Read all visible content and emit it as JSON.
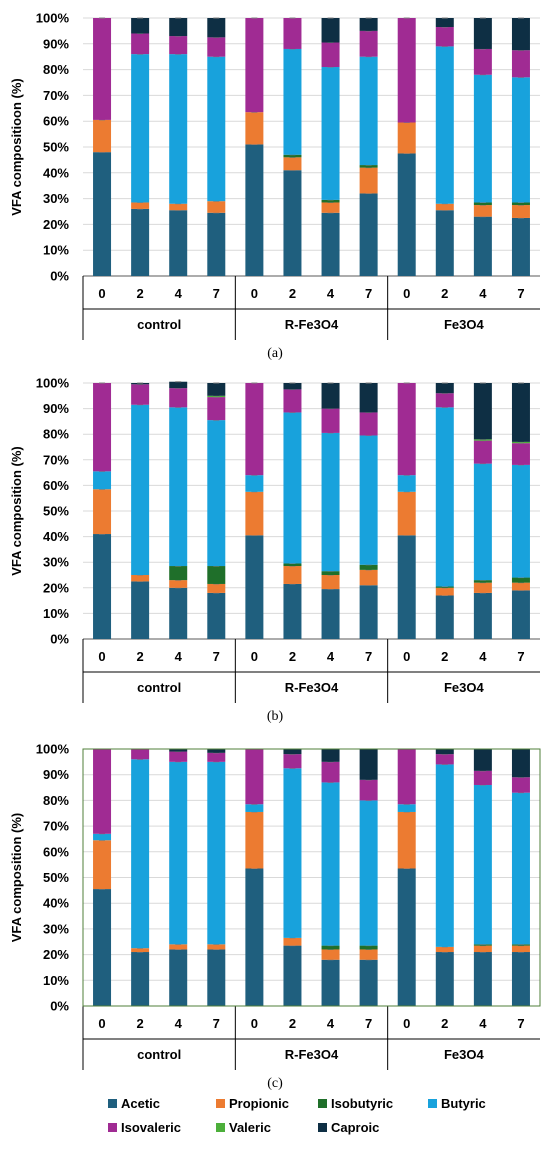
{
  "colors": {
    "Acetic": "#1f5f7e",
    "Propionic": "#ec7b31",
    "Isobutyric": "#1f6f2a",
    "Butyric": "#18a2dc",
    "Isovaleric": "#a02b93",
    "Valeric": "#4caf3a",
    "Caproic": "#0e2f44"
  },
  "legend": [
    "Acetic",
    "Propionic",
    "Isobutyric",
    "Butyric",
    "Isovaleric",
    "Valeric",
    "Caproic"
  ],
  "chart_data": [
    {
      "type": "bar",
      "stacked": true,
      "caption": "(a)",
      "ylabel": "VFA compositioon (%)",
      "ylim": [
        0,
        100
      ],
      "yticks": [
        "0%",
        "10%",
        "20%",
        "30%",
        "40%",
        "50%",
        "60%",
        "70%",
        "80%",
        "90%",
        "100%"
      ],
      "groups": [
        "control",
        "R-Fe3O4",
        "Fe3O4"
      ],
      "categories": [
        "0",
        "2",
        "4",
        "7",
        "0",
        "2",
        "4",
        "7",
        "0",
        "2",
        "4",
        "7"
      ],
      "series": [
        {
          "name": "Acetic",
          "values": [
            48,
            26,
            25.5,
            24.5,
            51,
            41,
            24.5,
            32,
            47.5,
            25.5,
            23,
            22.5
          ]
        },
        {
          "name": "Propionic",
          "values": [
            12.5,
            2.5,
            2.5,
            4.5,
            12.5,
            5,
            4,
            10,
            12,
            2.5,
            4.5,
            5
          ]
        },
        {
          "name": "Isobutyric",
          "values": [
            0,
            0,
            0,
            0,
            0,
            1,
            1,
            1,
            0,
            0,
            1,
            1
          ]
        },
        {
          "name": "Butyric",
          "values": [
            0,
            57.5,
            58,
            56,
            0,
            41,
            51.5,
            42,
            0,
            61,
            49.5,
            48.5
          ]
        },
        {
          "name": "Isovaleric",
          "values": [
            39.5,
            8,
            7,
            7.5,
            36.5,
            12,
            9.5,
            10,
            40.5,
            7.5,
            10,
            10.5
          ]
        },
        {
          "name": "Valeric",
          "values": [
            0,
            0,
            0,
            0,
            0,
            0,
            0,
            0,
            0,
            0,
            0,
            0
          ]
        },
        {
          "name": "Caproic",
          "values": [
            0,
            6,
            7,
            7.5,
            0,
            0,
            9.5,
            5,
            0,
            3.5,
            12,
            12.5
          ]
        }
      ]
    },
    {
      "type": "bar",
      "stacked": true,
      "caption": "(b)",
      "ylabel": "VFA composition (%)",
      "ylim": [
        0,
        100
      ],
      "yticks": [
        "0%",
        "10%",
        "20%",
        "30%",
        "40%",
        "50%",
        "60%",
        "70%",
        "80%",
        "90%",
        "100%"
      ],
      "groups": [
        "control",
        "R-Fe3O4",
        "Fe3O4"
      ],
      "categories": [
        "0",
        "2",
        "4",
        "7",
        "0",
        "2",
        "4",
        "7",
        "0",
        "2",
        "4",
        "7"
      ],
      "series": [
        {
          "name": "Acetic",
          "values": [
            41,
            22.5,
            20,
            18,
            40.5,
            21.5,
            19.5,
            21,
            40.5,
            17,
            18,
            19
          ]
        },
        {
          "name": "Propionic",
          "values": [
            17.5,
            2.5,
            3,
            3.5,
            17,
            7,
            5.5,
            6,
            17,
            3,
            4,
            3
          ]
        },
        {
          "name": "Isobutyric",
          "values": [
            0,
            0,
            5.5,
            7,
            0,
            1,
            1.5,
            2,
            0,
            0.5,
            1,
            2
          ]
        },
        {
          "name": "Butyric",
          "values": [
            7,
            66.5,
            62,
            57,
            6.5,
            59,
            54,
            50.5,
            6.5,
            70,
            45.5,
            44
          ]
        },
        {
          "name": "Isovaleric",
          "values": [
            34.5,
            8,
            7.5,
            9,
            36,
            9,
            9.5,
            9,
            36,
            5.5,
            9,
            8.5
          ]
        },
        {
          "name": "Valeric",
          "values": [
            0,
            0,
            0,
            0.5,
            0,
            0,
            0,
            0,
            0,
            0,
            0.5,
            0.5
          ]
        },
        {
          "name": "Caproic",
          "values": [
            0,
            0.5,
            2.5,
            5,
            0,
            2.5,
            10,
            11.5,
            0,
            4,
            22,
            23
          ]
        }
      ]
    },
    {
      "type": "bar",
      "stacked": true,
      "caption": "(c)",
      "ylabel": "VFA composition (%)",
      "ylim": [
        0,
        100
      ],
      "yticks": [
        "0%",
        "10%",
        "20%",
        "30%",
        "40%",
        "50%",
        "60%",
        "70%",
        "80%",
        "90%",
        "100%"
      ],
      "groups": [
        "control",
        "R-Fe3O4",
        "Fe3O4"
      ],
      "categories": [
        "0",
        "2",
        "4",
        "7",
        "0",
        "2",
        "4",
        "7",
        "0",
        "2",
        "4",
        "7"
      ],
      "series": [
        {
          "name": "Acetic",
          "values": [
            45.5,
            21,
            22,
            22,
            53.5,
            23.5,
            18,
            18,
            53.5,
            21,
            21,
            21
          ]
        },
        {
          "name": "Propionic",
          "values": [
            19,
            1.5,
            2,
            2,
            22,
            3,
            4,
            4,
            22,
            2,
            2.5,
            2.5
          ]
        },
        {
          "name": "Isobutyric",
          "values": [
            0,
            0,
            0,
            0,
            0,
            0,
            1.5,
            1.5,
            0,
            0,
            0.5,
            0.5
          ]
        },
        {
          "name": "Butyric",
          "values": [
            2.5,
            73.5,
            71,
            71,
            3,
            66,
            63.5,
            56.5,
            3,
            71,
            62,
            59
          ]
        },
        {
          "name": "Isovaleric",
          "values": [
            33,
            4,
            4,
            3.5,
            21.5,
            5.5,
            8,
            8,
            21.5,
            4,
            5.5,
            6
          ]
        },
        {
          "name": "Valeric",
          "values": [
            0,
            0,
            0,
            0,
            0,
            0,
            0,
            0,
            0,
            0,
            0,
            0
          ]
        },
        {
          "name": "Caproic",
          "values": [
            0,
            0,
            1,
            1.5,
            0,
            2,
            5,
            12,
            0,
            2,
            8.5,
            11
          ]
        }
      ]
    }
  ]
}
